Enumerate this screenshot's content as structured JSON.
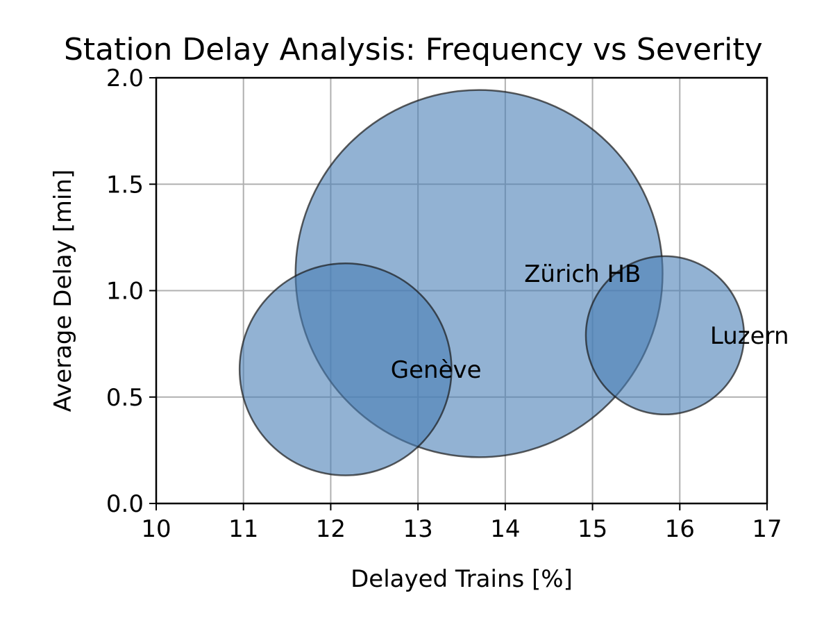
{
  "chart_data": {
    "type": "scatter",
    "title": "Station Delay Analysis: Frequency vs Severity",
    "xlabel": "Delayed Trains [%]",
    "ylabel": "Average Delay [min]",
    "xlim": [
      10,
      17
    ],
    "ylim": [
      0,
      2
    ],
    "xticks": [
      10,
      11,
      12,
      13,
      14,
      15,
      16,
      17
    ],
    "xtick_labels": [
      "10",
      "11",
      "12",
      "13",
      "14",
      "15",
      "16",
      "17"
    ],
    "yticks": [
      0,
      0.5,
      1,
      1.5,
      2
    ],
    "ytick_labels": [
      "0.0",
      "0.5",
      "1.0",
      "1.5",
      "2.0"
    ],
    "grid": true,
    "bubble_color": "#4a7fb5",
    "bubble_edge_color": "#1a1a1a",
    "points": [
      {
        "label": "Zürich HB",
        "x": 13.7,
        "y": 1.08,
        "size": 4.2
      },
      {
        "label": "Genève",
        "x": 12.17,
        "y": 0.63,
        "size": 1.4
      },
      {
        "label": "Luzern",
        "x": 15.83,
        "y": 0.79,
        "size": 0.78
      }
    ]
  }
}
